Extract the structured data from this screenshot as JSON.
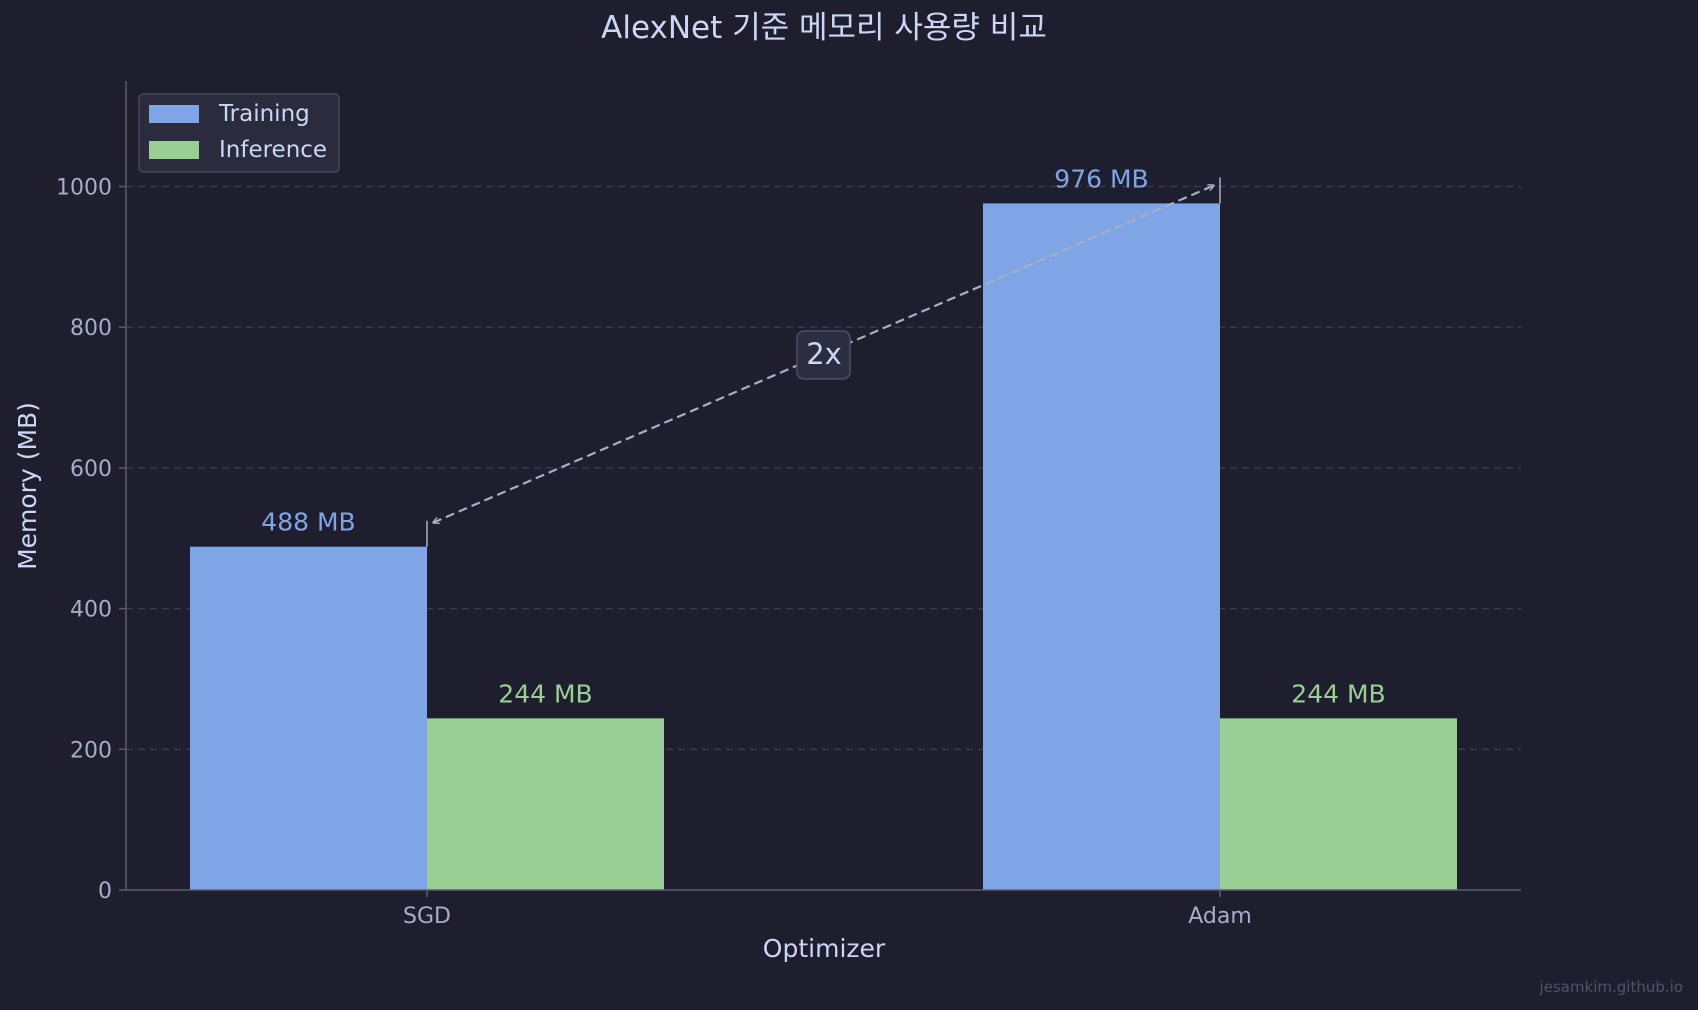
{
  "chart_data": {
    "type": "bar",
    "title": "AlexNet 기준 메모리 사용량 비교",
    "xlabel": "Optimizer",
    "ylabel": "Memory (MB)",
    "categories": [
      "SGD",
      "Adam"
    ],
    "series": [
      {
        "name": "Training",
        "values": [
          488,
          976
        ],
        "labels": [
          "488 MB",
          "976 MB"
        ]
      },
      {
        "name": "Inference",
        "values": [
          244,
          244
        ],
        "labels": [
          "244 MB",
          "244 MB"
        ]
      }
    ],
    "ylim": [
      0,
      1150
    ],
    "yticks": [
      0,
      200,
      400,
      600,
      800,
      1000
    ],
    "grid": "y-dashed",
    "legend": "top-left",
    "annotation": {
      "text": "2x",
      "from": [
        "SGD",
        488
      ],
      "to": [
        "Adam",
        976
      ]
    }
  },
  "watermark": "jesamkim.github.io",
  "colors": {
    "background": "#1e1e2e",
    "training": "#7fa5e6",
    "inference": "#99cf94",
    "text": "#cdd6f4",
    "tick": "#a6adc8",
    "axis": "#585b70",
    "grid": "#3a3c50",
    "arrow": "#a8aec4"
  }
}
